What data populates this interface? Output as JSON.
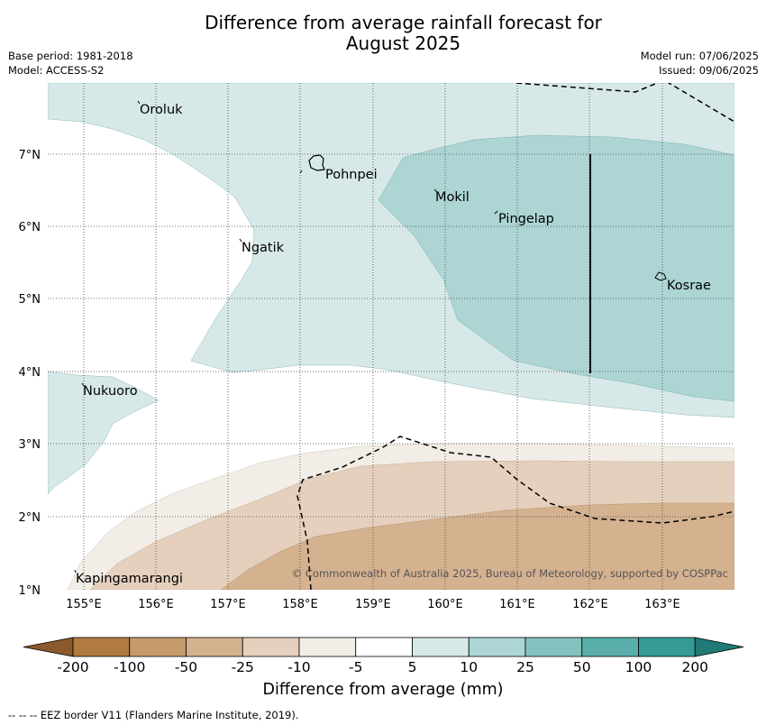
{
  "title_line1": "Difference from average rainfall forecast for",
  "title_line2": "August 2025",
  "meta": {
    "base_period": "Base period: 1981-2018",
    "model": "Model: ACCESS-S2",
    "model_run": "Model run: 07/06/2025",
    "issued": "Issued: 09/06/2025"
  },
  "map": {
    "lon_ticks": [
      "155°E",
      "156°E",
      "157°E",
      "158°E",
      "159°E",
      "160°E",
      "161°E",
      "162°E",
      "163°E"
    ],
    "lat_ticks": [
      "7°N",
      "6°N",
      "5°N",
      "4°N",
      "3°N",
      "2°N",
      "1°N"
    ],
    "places": [
      "Oroluk",
      "Pohnpei",
      "Mokil",
      "Pingelap",
      "Ngatik",
      "Kosrae",
      "Nukuoro",
      "Kapingamarangi"
    ],
    "copyright": "© Commonwealth of Australia 2025, Bureau of Meteorology, supported by COSPPac"
  },
  "colorbar": {
    "ticks": [
      "-200",
      "-100",
      "-50",
      "-25",
      "-10",
      "-5",
      "5",
      "10",
      "25",
      "50",
      "100",
      "200"
    ],
    "colors": [
      "#8c5a2a",
      "#b07a40",
      "#c69a6b",
      "#d4b18f",
      "#e4d0bd",
      "#f2ede6",
      "#ffffff",
      "#d6e9e8",
      "#acd5d4",
      "#83c2bf",
      "#5aaeaa",
      "#369b97",
      "#207a76"
    ],
    "label": "Difference from average (mm)"
  },
  "footnote": "--  --  -- EEZ border V11 (Flanders Marine Institute, 2019)."
}
